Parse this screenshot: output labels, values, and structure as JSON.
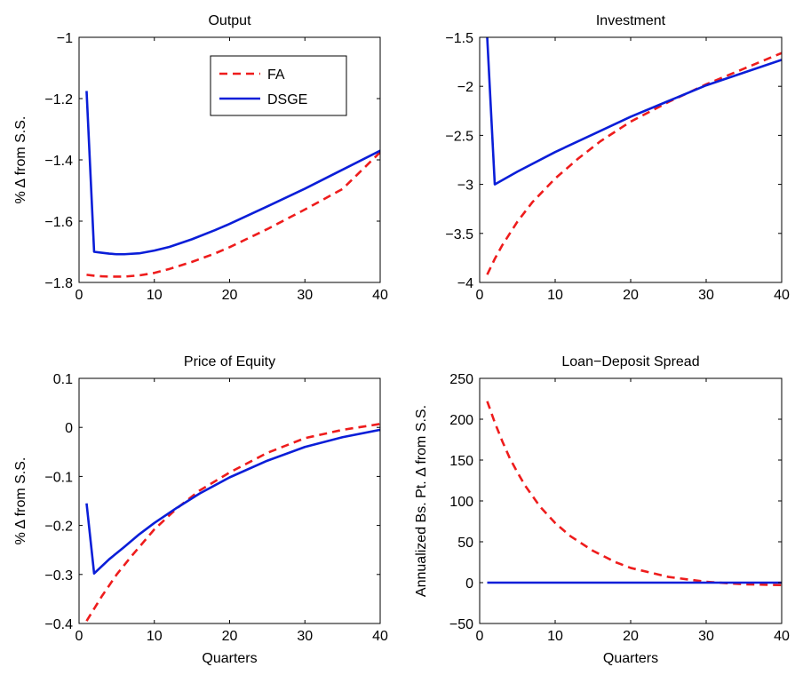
{
  "chart_data": [
    {
      "type": "line",
      "title": "Output",
      "ylabel": "% Δ from S.S.",
      "xlabel": "",
      "xlim": [
        0,
        40
      ],
      "ylim": [
        -1.8,
        -1.0
      ],
      "xticks": [
        "0",
        "10",
        "20",
        "30",
        "40"
      ],
      "yticks": [
        "−1.8",
        "−1.6",
        "−1.4",
        "−1.2",
        "−1"
      ],
      "legend": {
        "position": "top-right",
        "entries": [
          "FA",
          "DSGE"
        ]
      },
      "series": [
        {
          "name": "FA",
          "color": "#ee1c1c",
          "style": "dashed",
          "x": [
            1,
            2,
            3,
            4,
            5,
            6,
            8,
            10,
            12,
            15,
            18,
            20,
            25,
            30,
            35,
            40
          ],
          "y": [
            -1.775,
            -1.778,
            -1.78,
            -1.781,
            -1.781,
            -1.781,
            -1.777,
            -1.769,
            -1.756,
            -1.733,
            -1.706,
            -1.685,
            -1.626,
            -1.562,
            -1.495,
            -1.375
          ]
        },
        {
          "name": "DSGE",
          "color": "#0a1ed8",
          "style": "solid",
          "x": [
            1,
            2,
            3,
            4,
            5,
            6,
            8,
            10,
            12,
            15,
            18,
            20,
            25,
            30,
            35,
            40
          ],
          "y": [
            -1.175,
            -1.7,
            -1.703,
            -1.706,
            -1.708,
            -1.708,
            -1.705,
            -1.696,
            -1.684,
            -1.659,
            -1.63,
            -1.609,
            -1.552,
            -1.494,
            -1.432,
            -1.37
          ]
        }
      ]
    },
    {
      "type": "line",
      "title": "Investment",
      "ylabel": "",
      "xlabel": "",
      "xlim": [
        0,
        40
      ],
      "ylim": [
        -4,
        -1.5
      ],
      "xticks": [
        "0",
        "10",
        "20",
        "30",
        "40"
      ],
      "yticks": [
        "−4",
        "−3.5",
        "−3",
        "−2.5",
        "−2",
        "−1.5"
      ],
      "series": [
        {
          "name": "FA",
          "color": "#ee1c1c",
          "style": "dashed",
          "x": [
            1,
            2,
            3,
            5,
            7,
            10,
            13,
            16,
            20,
            25,
            30,
            35,
            40
          ],
          "y": [
            -3.92,
            -3.76,
            -3.62,
            -3.38,
            -3.18,
            -2.94,
            -2.74,
            -2.56,
            -2.36,
            -2.16,
            -1.98,
            -1.82,
            -1.66
          ]
        },
        {
          "name": "DSGE",
          "color": "#0a1ed8",
          "style": "solid",
          "x": [
            1,
            2,
            5,
            10,
            15,
            20,
            25,
            30,
            35,
            40
          ],
          "y": [
            -1.5,
            -3.0,
            -2.87,
            -2.67,
            -2.49,
            -2.31,
            -2.15,
            -1.99,
            -1.86,
            -1.73
          ]
        }
      ]
    },
    {
      "type": "line",
      "title": "Price of Equity",
      "ylabel": "% Δ from S.S.",
      "xlabel": "Quarters",
      "xlim": [
        0,
        40
      ],
      "ylim": [
        -0.4,
        0.1
      ],
      "xticks": [
        "0",
        "10",
        "20",
        "30",
        "40"
      ],
      "yticks": [
        "−0.4",
        "−0.3",
        "−0.2",
        "−0.1",
        "0",
        "0.1"
      ],
      "series": [
        {
          "name": "FA",
          "color": "#ee1c1c",
          "style": "dashed",
          "x": [
            1,
            2,
            3,
            5,
            7,
            10,
            13,
            16,
            20,
            25,
            30,
            35,
            40
          ],
          "y": [
            -0.395,
            -0.37,
            -0.345,
            -0.3,
            -0.262,
            -0.208,
            -0.165,
            -0.129,
            -0.092,
            -0.052,
            -0.022,
            -0.005,
            0.007
          ]
        },
        {
          "name": "DSGE",
          "color": "#0a1ed8",
          "style": "solid",
          "x": [
            1,
            2,
            4,
            6,
            8,
            10,
            13,
            16,
            20,
            25,
            30,
            35,
            40
          ],
          "y": [
            -0.155,
            -0.298,
            -0.269,
            -0.244,
            -0.218,
            -0.195,
            -0.164,
            -0.135,
            -0.102,
            -0.068,
            -0.04,
            -0.02,
            -0.005
          ]
        }
      ]
    },
    {
      "type": "line",
      "title": "Loan−Deposit Spread",
      "ylabel": "Annualized Bs. Pt. Δ from S.S.",
      "xlabel": "Quarters",
      "xlim": [
        0,
        40
      ],
      "ylim": [
        -50,
        250
      ],
      "xticks": [
        "0",
        "10",
        "20",
        "30",
        "40"
      ],
      "yticks": [
        "−50",
        "0",
        "50",
        "100",
        "150",
        "200",
        "250"
      ],
      "series": [
        {
          "name": "FA",
          "color": "#ee1c1c",
          "style": "dashed",
          "x": [
            1,
            2,
            3,
            4,
            5,
            6,
            8,
            10,
            12,
            15,
            18,
            20,
            25,
            30,
            35,
            40
          ],
          "y": [
            222,
            196,
            173,
            152,
            135,
            119,
            93,
            73,
            57,
            39,
            25,
            18,
            7,
            1,
            -2,
            -3
          ]
        },
        {
          "name": "DSGE",
          "color": "#0a1ed8",
          "style": "solid",
          "x": [
            1,
            40
          ],
          "y": [
            0,
            0
          ]
        }
      ]
    }
  ]
}
